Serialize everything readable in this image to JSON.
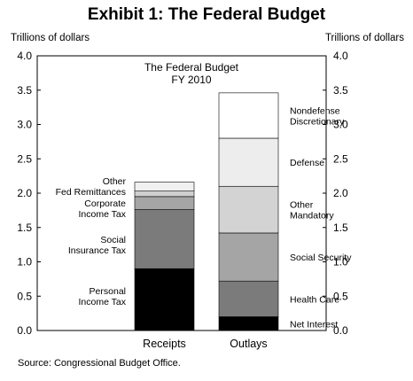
{
  "figure": {
    "title": "Exhibit 1: The Federal Budget",
    "left_axis_unit": "Trillions of dollars",
    "right_axis_unit": "Trillions of dollars",
    "source": "Source: Congressional Budget Office."
  },
  "chart_data": {
    "type": "bar",
    "stacked": true,
    "title": "The Federal Budget",
    "subtitle": "FY 2010",
    "ylabel": "Trillions of dollars",
    "ylim": [
      0,
      4.0
    ],
    "yticks": [
      "0.0",
      "0.5",
      "1.0",
      "1.5",
      "2.0",
      "2.5",
      "3.0",
      "3.5",
      "4.0"
    ],
    "grid": false,
    "bars": [
      {
        "category": "Receipts",
        "segments": [
          {
            "label": "Personal Income Tax",
            "label_lines": [
              "Personal",
              "Income Tax"
            ],
            "value": 0.9,
            "color": "#000000"
          },
          {
            "label": "Social Insurance Tax",
            "label_lines": [
              "Social",
              "Insurance Tax"
            ],
            "value": 0.86,
            "color": "#7b7b7b"
          },
          {
            "label": "Corporate Income Tax",
            "label_lines": [
              "Corporate",
              "Income Tax"
            ],
            "value": 0.19,
            "color": "#a5a5a5"
          },
          {
            "label": "Fed Remittances",
            "label_lines": [
              "Fed Remittances"
            ],
            "value": 0.08,
            "color": "#cfcfcf"
          },
          {
            "label": "Other",
            "label_lines": [
              "Other"
            ],
            "value": 0.13,
            "color": "#f0f0f0"
          }
        ]
      },
      {
        "category": "Outlays",
        "segments": [
          {
            "label": "Net Interest",
            "label_lines": [
              "Net Interest"
            ],
            "value": 0.2,
            "color": "#000000"
          },
          {
            "label": "Health Care",
            "label_lines": [
              "Health Care"
            ],
            "value": 0.52,
            "color": "#7b7b7b"
          },
          {
            "label": "Social Security",
            "label_lines": [
              "Social Security"
            ],
            "value": 0.7,
            "color": "#a5a5a5"
          },
          {
            "label": "Other Mandatory",
            "label_lines": [
              "Other",
              "Mandatory"
            ],
            "value": 0.68,
            "color": "#d3d3d3"
          },
          {
            "label": "Defense",
            "label_lines": [
              "Defense"
            ],
            "value": 0.7,
            "color": "#ededed"
          },
          {
            "label": "Nondefense Discretionary",
            "label_lines": [
              "Nondefense",
              "Discretionary"
            ],
            "value": 0.66,
            "color": "#ffffff"
          }
        ]
      }
    ]
  }
}
